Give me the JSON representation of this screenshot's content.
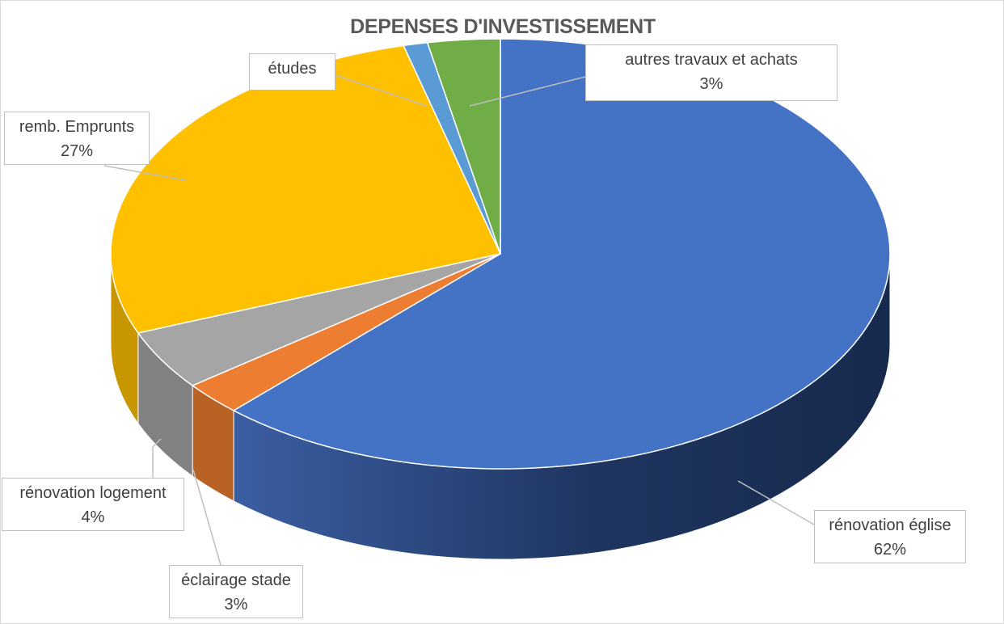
{
  "chart_data": {
    "type": "pie",
    "style": "3d",
    "title": "DEPENSES D'INVESTISSEMENT",
    "slices": [
      {
        "label": "rénovation église",
        "percent_label": "62%",
        "value": 62,
        "color": "#4472c4"
      },
      {
        "label": "éclairage stade",
        "percent_label": "3%",
        "value": 2.5,
        "color": "#ed7d31"
      },
      {
        "label": "rénovation logement",
        "percent_label": "4%",
        "value": 4.5,
        "color": "#a5a5a5"
      },
      {
        "label": "remb. Emprunts",
        "percent_label": "27%",
        "value": 27,
        "color": "#ffc000"
      },
      {
        "label": "études",
        "percent_label": "",
        "value": 1,
        "color": "#5b9bd5"
      },
      {
        "label": "autres travaux et achats",
        "percent_label": "3%",
        "value": 3,
        "color": "#70ad47"
      }
    ],
    "legend": "none",
    "data_labels": "callouts"
  }
}
